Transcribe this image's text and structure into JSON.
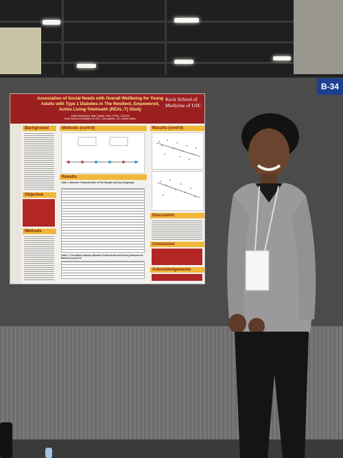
{
  "booth": {
    "label": "B-34"
  },
  "poster": {
    "title": "Association of Social Needs with Overall Wellbeing for Young Adults with Type 1 Diabetes in The Resilient, Empowered, Active Living-Telehealth (REAL-T) Study",
    "authors": "Caleb Mekachew, Beth Pyatak, PhD, OTR/L, CDCES",
    "affiliation": "Keck School of Medicine of USC, Los Angeles, CA, United States",
    "logo_text": "Keck School of Medicine of USC",
    "sections": {
      "background": "Background",
      "objective": "Objective",
      "methods": "Methods",
      "methods_cont": "Methods (cont'd)",
      "results": "Results",
      "results_cont": "Results (cont'd)",
      "discussion": "Discussion",
      "conclusion": "Conclusion",
      "acknowledgements": "Acknowledgements"
    },
    "table1_title": "Table 1. Baseline Characteristics of Full Sample and Key Subgroups",
    "table2_title": "Table 2. Correlation Analysis Between Social Needs and Survey Measures at Baseline (n=n) Is N"
  },
  "colors": {
    "banner": "#9c1f1f",
    "accent": "#f0b73a",
    "booth_sign": "#1c3f8f"
  }
}
